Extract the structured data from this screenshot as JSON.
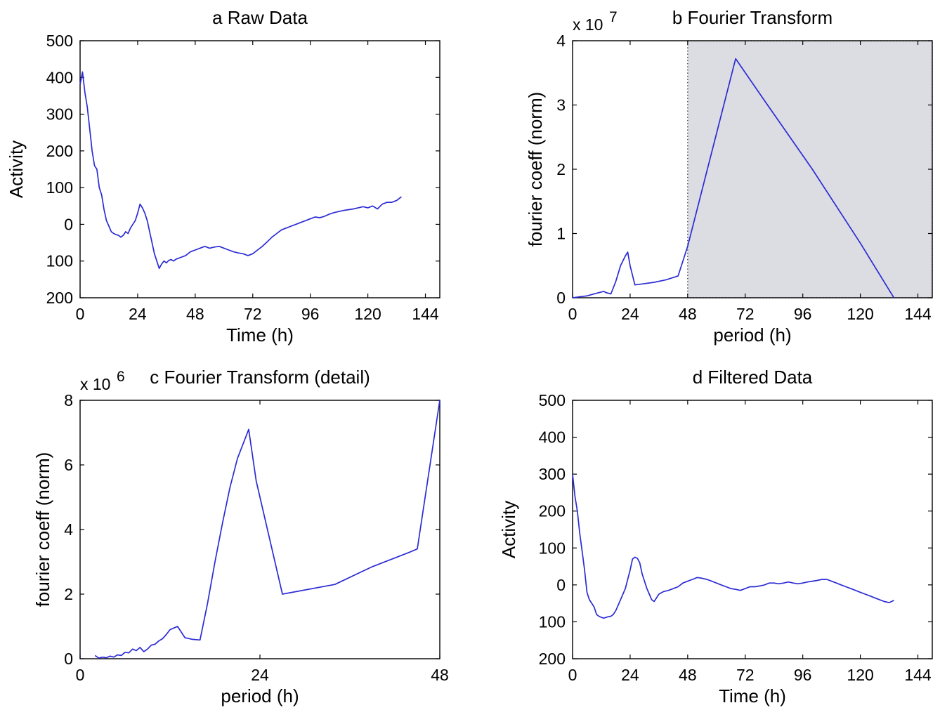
{
  "chart_data": [
    {
      "id": "a",
      "type": "line",
      "title": "a  Raw Data",
      "xlabel": "Time (h)",
      "ylabel": "Activity",
      "xlim": [
        0,
        150
      ],
      "ylim": [
        -200,
        500
      ],
      "xticks": [
        0,
        24,
        48,
        72,
        96,
        120,
        144
      ],
      "yticks": [
        500,
        400,
        300,
        200,
        100,
        0,
        -100,
        -200
      ],
      "ytick_labels": [
        "500",
        "400",
        "300",
        "200",
        "100",
        "0",
        "100",
        "200"
      ],
      "x": [
        0,
        1,
        2,
        3,
        4,
        5,
        6,
        7,
        8,
        9,
        10,
        11,
        12,
        13,
        14,
        15,
        16,
        17,
        18,
        19,
        20,
        21,
        22,
        23,
        24,
        25,
        26,
        27,
        28,
        29,
        30,
        31,
        32,
        33,
        34,
        35,
        36,
        37,
        38,
        39,
        40,
        42,
        44,
        46,
        48,
        50,
        52,
        54,
        56,
        58,
        60,
        62,
        64,
        66,
        68,
        70,
        72,
        74,
        76,
        78,
        80,
        82,
        84,
        86,
        88,
        90,
        92,
        94,
        96,
        98,
        100,
        102,
        104,
        106,
        108,
        110,
        112,
        114,
        116,
        118,
        120,
        122,
        124,
        126,
        128,
        130,
        132,
        134
      ],
      "y": [
        380,
        415,
        360,
        320,
        260,
        200,
        160,
        150,
        100,
        80,
        40,
        10,
        -5,
        -20,
        -25,
        -28,
        -30,
        -35,
        -30,
        -20,
        -25,
        -10,
        0,
        10,
        30,
        55,
        45,
        30,
        10,
        -20,
        -50,
        -80,
        -100,
        -120,
        -108,
        -100,
        -105,
        -98,
        -96,
        -100,
        -95,
        -90,
        -85,
        -75,
        -70,
        -65,
        -60,
        -65,
        -62,
        -60,
        -65,
        -70,
        -75,
        -78,
        -80,
        -85,
        -80,
        -70,
        -60,
        -48,
        -35,
        -25,
        -15,
        -10,
        -5,
        0,
        5,
        10,
        15,
        20,
        18,
        22,
        28,
        32,
        35,
        38,
        40,
        42,
        45,
        48,
        45,
        50,
        42,
        55,
        60,
        60,
        65,
        75
      ]
    },
    {
      "id": "b",
      "type": "line",
      "title": "b  Fourier Transform",
      "xlabel": "period (h)",
      "ylabel": "fourier coeff (norm)",
      "multiplier": "x 10",
      "multiplier_exp": "7",
      "xlim": [
        0,
        150
      ],
      "ylim": [
        0,
        4
      ],
      "xticks": [
        0,
        24,
        48,
        72,
        96,
        120,
        144
      ],
      "yticks": [
        0,
        1,
        2,
        3,
        4
      ],
      "shaded_region": [
        48,
        150
      ],
      "x": [
        0,
        2,
        4,
        6,
        8,
        10,
        12,
        13,
        14,
        16,
        18,
        20,
        22,
        23,
        24,
        26,
        28,
        34,
        39,
        44,
        48,
        68,
        80,
        100,
        120,
        134
      ],
      "y": [
        0,
        0.01,
        0.02,
        0.03,
        0.05,
        0.07,
        0.09,
        0.1,
        0.08,
        0.06,
        0.25,
        0.5,
        0.65,
        0.71,
        0.5,
        0.2,
        0.21,
        0.24,
        0.28,
        0.34,
        0.8,
        3.72,
        3.07,
        2.0,
        0.85,
        0.0
      ]
    },
    {
      "id": "c",
      "type": "line",
      "title": "c  Fourier Transform (detail)",
      "xlabel": "period (h)",
      "ylabel": "fourier coeff (norm)",
      "multiplier": "x 10",
      "multiplier_exp": "6",
      "xlim": [
        0,
        48
      ],
      "ylim": [
        0,
        8
      ],
      "xticks": [
        0,
        24,
        48
      ],
      "yticks": [
        0,
        2,
        4,
        6,
        8
      ],
      "x": [
        2,
        2.5,
        3,
        3.5,
        4,
        4.5,
        5,
        5.5,
        6,
        6.5,
        7,
        7.5,
        8,
        8.5,
        9,
        9.5,
        10,
        10.5,
        11,
        11.5,
        12,
        12.5,
        13,
        14,
        15,
        16,
        17,
        18,
        19,
        20,
        21,
        22.5,
        23.5,
        27,
        34,
        39,
        44,
        45,
        48
      ],
      "y": [
        0.1,
        0.02,
        0.05,
        0.03,
        0.08,
        0.05,
        0.12,
        0.1,
        0.2,
        0.18,
        0.3,
        0.25,
        0.35,
        0.22,
        0.3,
        0.42,
        0.45,
        0.55,
        0.62,
        0.75,
        0.9,
        0.95,
        1.0,
        0.65,
        0.6,
        0.58,
        1.7,
        3.0,
        4.2,
        5.3,
        6.2,
        7.1,
        5.5,
        2.0,
        2.3,
        2.85,
        3.3,
        3.4,
        8.0
      ]
    },
    {
      "id": "d",
      "type": "line",
      "title": "d  Filtered Data",
      "xlabel": "Time (h)",
      "ylabel": "Activity",
      "xlim": [
        0,
        150
      ],
      "ylim": [
        -200,
        500
      ],
      "xticks": [
        0,
        24,
        48,
        72,
        96,
        120,
        144
      ],
      "yticks": [
        500,
        400,
        300,
        200,
        100,
        0,
        -100,
        -200
      ],
      "ytick_labels": [
        "500",
        "400",
        "300",
        "200",
        "100",
        "0",
        "100",
        "200"
      ],
      "x": [
        0,
        1,
        2,
        3,
        4,
        5,
        6,
        7,
        8,
        9,
        10,
        11,
        12,
        13,
        14,
        15,
        16,
        17,
        18,
        19,
        20,
        22,
        24,
        25,
        26,
        27,
        28,
        29,
        30,
        31,
        32,
        33,
        34,
        35,
        36,
        38,
        40,
        42,
        44,
        46,
        48,
        50,
        52,
        54,
        56,
        58,
        60,
        62,
        64,
        66,
        68,
        70,
        72,
        74,
        76,
        78,
        80,
        82,
        84,
        86,
        88,
        90,
        92,
        94,
        96,
        98,
        100,
        102,
        104,
        106,
        108,
        110,
        112,
        114,
        116,
        118,
        120,
        122,
        124,
        126,
        128,
        130,
        132,
        134
      ],
      "y": [
        300,
        240,
        200,
        140,
        90,
        40,
        -20,
        -40,
        -50,
        -60,
        -80,
        -85,
        -88,
        -90,
        -88,
        -86,
        -85,
        -80,
        -70,
        -55,
        -40,
        -10,
        40,
        70,
        75,
        72,
        60,
        30,
        10,
        -10,
        -25,
        -40,
        -45,
        -35,
        -25,
        -18,
        -15,
        -10,
        -5,
        5,
        10,
        15,
        20,
        18,
        15,
        10,
        5,
        0,
        -5,
        -10,
        -12,
        -15,
        -10,
        -5,
        -5,
        -3,
        0,
        5,
        5,
        3,
        5,
        8,
        5,
        3,
        5,
        8,
        10,
        12,
        15,
        15,
        10,
        5,
        0,
        -5,
        -10,
        -15,
        -20,
        -25,
        -30,
        -35,
        -40,
        -45,
        -48,
        -42
      ]
    }
  ]
}
